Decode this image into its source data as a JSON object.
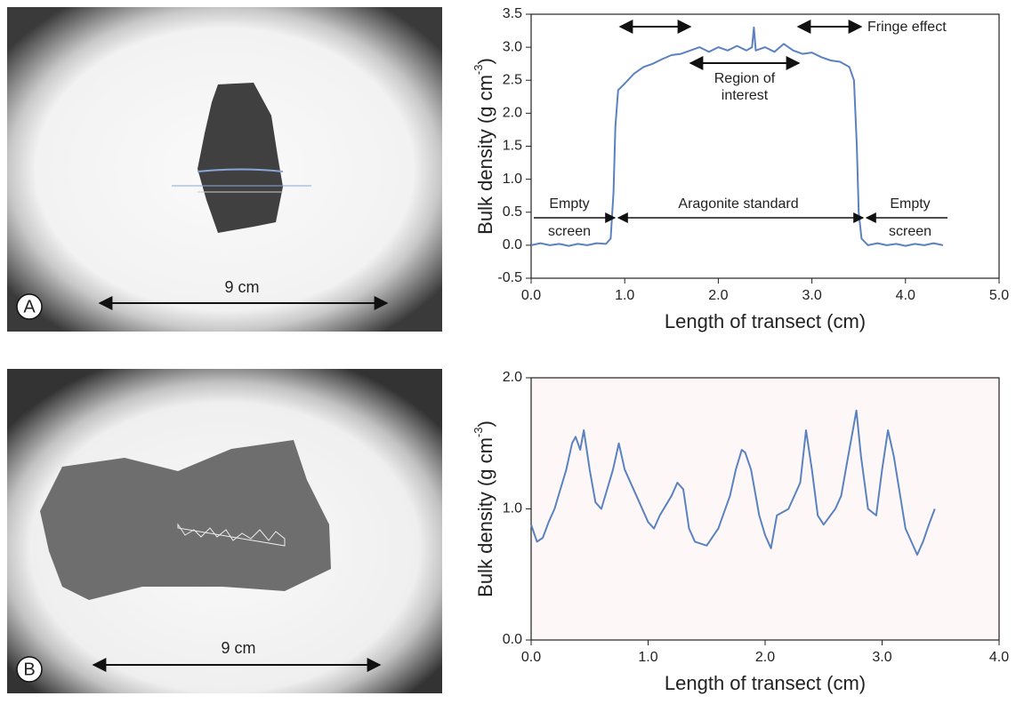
{
  "photos": [
    {
      "letter": "A",
      "scale": "9 cm"
    },
    {
      "letter": "B",
      "scale": "9 cm"
    }
  ],
  "chart_data": [
    {
      "type": "line",
      "xlabel": "Length of transect (cm)",
      "ylabel": "Bulk density (g cm",
      "ylabel_sup": "-3",
      "ylabel_end": ")",
      "xlim": [
        0,
        5
      ],
      "ylim": [
        -0.5,
        3.5
      ],
      "xticks": [
        {
          "value": 0,
          "label": "0.0"
        },
        {
          "value": 1,
          "label": "1.0"
        },
        {
          "value": 2,
          "label": "2.0"
        },
        {
          "value": 3,
          "label": "3.0"
        },
        {
          "value": 4,
          "label": "4.0"
        },
        {
          "value": 5,
          "label": "5.0"
        }
      ],
      "yticks": [
        {
          "value": -0.5,
          "label": "-0.5"
        },
        {
          "value": 0,
          "label": "0.0"
        },
        {
          "value": 0.5,
          "label": "0.5"
        },
        {
          "value": 1,
          "label": "1.0"
        },
        {
          "value": 1.5,
          "label": "1.5"
        },
        {
          "value": 2,
          "label": "2.0"
        },
        {
          "value": 2.5,
          "label": "2.5"
        },
        {
          "value": 3,
          "label": "3.0"
        },
        {
          "value": 3.5,
          "label": "3.5"
        }
      ],
      "background": "#ffffff",
      "series": [
        {
          "color": "#5b82c0",
          "x": [
            0,
            0.1,
            0.2,
            0.3,
            0.4,
            0.5,
            0.6,
            0.7,
            0.8,
            0.85,
            0.88,
            0.9,
            0.93,
            1.0,
            1.1,
            1.2,
            1.3,
            1.4,
            1.5,
            1.6,
            1.7,
            1.8,
            1.9,
            2.0,
            2.1,
            2.2,
            2.3,
            2.36,
            2.38,
            2.4,
            2.5,
            2.6,
            2.7,
            2.8,
            2.9,
            3.0,
            3.1,
            3.2,
            3.3,
            3.4,
            3.45,
            3.48,
            3.5,
            3.53,
            3.6,
            3.7,
            3.8,
            3.9,
            4.0,
            4.1,
            4.2,
            4.3,
            4.4
          ],
          "values": [
            0.0,
            0.03,
            0.0,
            0.02,
            -0.01,
            0.02,
            0.0,
            0.03,
            0.02,
            0.1,
            0.8,
            1.8,
            2.35,
            2.45,
            2.6,
            2.7,
            2.75,
            2.82,
            2.88,
            2.9,
            2.95,
            3.0,
            2.93,
            3.0,
            2.95,
            3.02,
            2.95,
            3.0,
            3.3,
            2.95,
            3.0,
            2.93,
            3.05,
            2.95,
            2.9,
            2.92,
            2.85,
            2.8,
            2.78,
            2.7,
            2.5,
            1.5,
            0.5,
            0.1,
            0.0,
            0.03,
            0.0,
            0.02,
            -0.01,
            0.02,
            0.0,
            0.03,
            0.0
          ]
        }
      ],
      "annotations": {
        "fringe": "Fringe effect",
        "roi": [
          "Region of",
          "interest"
        ],
        "empty_left": [
          "Empty",
          "screen"
        ],
        "standard": "Aragonite standard",
        "empty_right": [
          "Empty",
          "screen"
        ]
      }
    },
    {
      "type": "line",
      "xlabel": "Length of transect (cm)",
      "ylabel": "Bulk density (g cm",
      "ylabel_sup": "-3",
      "ylabel_end": ")",
      "xlim": [
        0,
        4
      ],
      "ylim": [
        0,
        2
      ],
      "xticks": [
        {
          "value": 0,
          "label": "0.0"
        },
        {
          "value": 1,
          "label": "1.0"
        },
        {
          "value": 2,
          "label": "2.0"
        },
        {
          "value": 3,
          "label": "3.0"
        },
        {
          "value": 4,
          "label": "4.0"
        }
      ],
      "yticks": [
        {
          "value": 0,
          "label": "0.0"
        },
        {
          "value": 1,
          "label": "1.0"
        },
        {
          "value": 2,
          "label": "2.0"
        }
      ],
      "background": "#fdf8f7",
      "series": [
        {
          "color": "#5b82c0",
          "x": [
            0,
            0.05,
            0.1,
            0.15,
            0.2,
            0.25,
            0.3,
            0.35,
            0.38,
            0.42,
            0.45,
            0.5,
            0.55,
            0.6,
            0.65,
            0.7,
            0.75,
            0.8,
            0.9,
            1.0,
            1.05,
            1.1,
            1.2,
            1.25,
            1.3,
            1.35,
            1.4,
            1.5,
            1.6,
            1.7,
            1.75,
            1.8,
            1.83,
            1.88,
            1.95,
            2.0,
            2.05,
            2.1,
            2.2,
            2.3,
            2.35,
            2.4,
            2.45,
            2.5,
            2.6,
            2.65,
            2.7,
            2.78,
            2.82,
            2.88,
            2.95,
            3.0,
            3.05,
            3.1,
            3.2,
            3.25,
            3.3,
            3.35,
            3.4,
            3.45
          ],
          "values": [
            0.88,
            0.75,
            0.78,
            0.9,
            1.0,
            1.15,
            1.3,
            1.5,
            1.55,
            1.45,
            1.6,
            1.3,
            1.05,
            1.0,
            1.15,
            1.3,
            1.5,
            1.3,
            1.1,
            0.9,
            0.85,
            0.95,
            1.1,
            1.2,
            1.15,
            0.85,
            0.75,
            0.72,
            0.85,
            1.1,
            1.3,
            1.45,
            1.43,
            1.3,
            0.95,
            0.8,
            0.7,
            0.95,
            1.0,
            1.2,
            1.6,
            1.3,
            0.95,
            0.88,
            1.0,
            1.1,
            1.35,
            1.75,
            1.4,
            1.0,
            0.95,
            1.3,
            1.6,
            1.4,
            0.85,
            0.75,
            0.65,
            0.75,
            0.88,
            1.0
          ]
        }
      ]
    }
  ]
}
